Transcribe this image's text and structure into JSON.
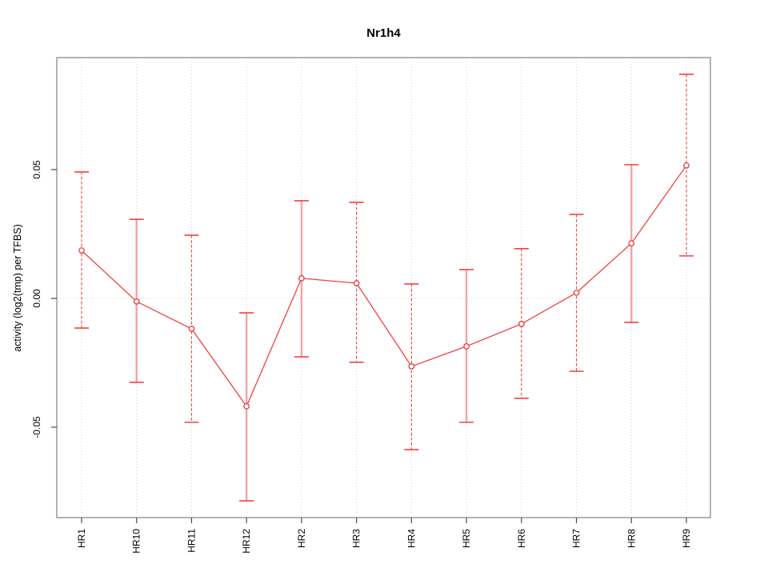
{
  "chart_data": {
    "type": "line",
    "title": "Nr1h4",
    "xlabel": "",
    "ylabel": "activity (log2(tmp) per TFBS)",
    "categories": [
      "HR1",
      "HR10",
      "HR11",
      "HR12",
      "HR2",
      "HR3",
      "HR4",
      "HR5",
      "HR6",
      "HR7",
      "HR8",
      "HR9"
    ],
    "series": [
      {
        "name": "activity",
        "values": [
          0.0186,
          -0.0012,
          -0.0118,
          -0.0419,
          0.0078,
          0.0059,
          -0.0264,
          -0.0186,
          -0.0099,
          0.0022,
          0.0214,
          0.0516
        ],
        "error_upper": [
          0.0491,
          0.0307,
          0.0245,
          -0.0056,
          0.0379,
          0.0373,
          0.0056,
          0.0112,
          0.0193,
          0.0326,
          0.0519,
          0.087
        ],
        "error_lower": [
          -0.0115,
          -0.0326,
          -0.0481,
          -0.0786,
          -0.0227,
          -0.0248,
          -0.0587,
          -0.0481,
          -0.0388,
          -0.0283,
          -0.0093,
          0.0165
        ],
        "error_bar_styles": [
          "dashed",
          "solid",
          "dashed",
          "solid",
          "solid",
          "dashed",
          "dashed",
          "solid",
          "dashed",
          "dashed",
          "solid",
          "dashed"
        ]
      }
    ],
    "y_ticks": [
      -0.05,
      0.0,
      0.05
    ],
    "y_tick_labels": [
      "-0.05",
      "0.00",
      "0.05"
    ],
    "ylim": [
      -0.0852,
      0.0936
    ],
    "grid": {
      "vertical": "dotted line at each category",
      "horizontal": "dotted line at y=0 only"
    },
    "legend_position": "none",
    "marker": "open-circle",
    "colors": {
      "line": "#f04343",
      "marker_stroke": "#e53e3e",
      "marker_fill": "#ffffff",
      "error_bar_dashed": "#f04343",
      "error_bar_solid": "#f5a3a3",
      "error_cap": "#f04343",
      "gridline": "#cfcfcf",
      "plot_border": "#9a9a9a",
      "tick": "#4a4a4a",
      "text": "#000000"
    }
  }
}
